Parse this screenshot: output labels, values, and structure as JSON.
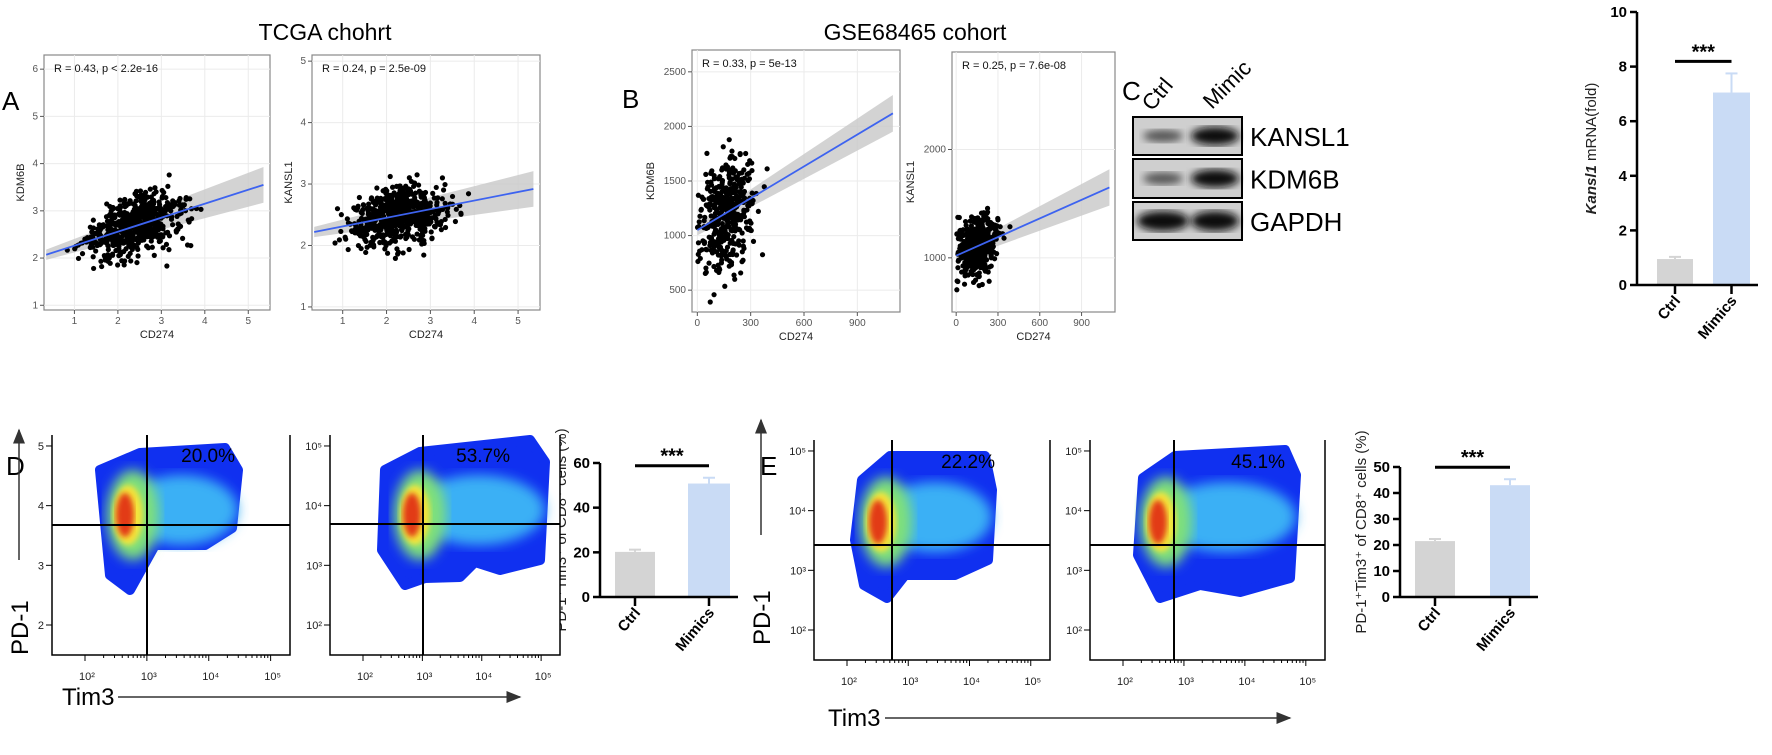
{
  "panel_labels": {
    "a": "A",
    "b": "B",
    "c": "C",
    "d": "D",
    "e": "E"
  },
  "titles": {
    "tcga": "TCGA chohrt",
    "gse": "GSE68465 cohort"
  },
  "blot": {
    "lanes": [
      "Ctrl",
      "Mimic"
    ],
    "bands": [
      "KANSL1",
      "KDM6B",
      "GAPDH"
    ]
  },
  "chart_data": [
    {
      "id": "A1",
      "type": "scatter",
      "xlabel": "CD274",
      "ylabel": "KDM6B",
      "annotation": "R = 0.43, p < 2.2e-16",
      "xlim": [
        0.3,
        5.5
      ],
      "ylim": [
        0.9,
        6.3
      ],
      "xticks": [
        "1",
        "2",
        "3",
        "4",
        "5"
      ],
      "xtick_values": [
        1,
        2,
        3,
        4,
        5
      ],
      "yticks": [
        "1",
        "2",
        "3",
        "4",
        "5",
        "6"
      ],
      "ytick_values": [
        1,
        2,
        3,
        4,
        5,
        6
      ],
      "fit": {
        "x": [
          0.35,
          5.35
        ],
        "y": [
          2.07,
          3.55
        ]
      },
      "n_points": 600,
      "x_center": 2.4,
      "x_spread": 0.9,
      "y_noise": 0.5,
      "grid": true
    },
    {
      "id": "A2",
      "type": "scatter",
      "xlabel": "CD274",
      "ylabel": "KANSL1",
      "annotation": "R = 0.24, p = 2.5e-09",
      "xlim": [
        0.3,
        5.5
      ],
      "ylim": [
        0.95,
        5.1
      ],
      "xticks": [
        "1",
        "2",
        "3",
        "4",
        "5"
      ],
      "xtick_values": [
        1,
        2,
        3,
        4,
        5
      ],
      "yticks": [
        "1",
        "2",
        "3",
        "4",
        "5"
      ],
      "ytick_values": [
        1,
        2,
        3,
        4,
        5
      ],
      "fit": {
        "x": [
          0.35,
          5.35
        ],
        "y": [
          2.22,
          2.92
        ]
      },
      "n_points": 600,
      "x_center": 2.3,
      "x_spread": 0.9,
      "y_noise": 0.4,
      "grid": true
    },
    {
      "id": "B1",
      "type": "scatter",
      "xlabel": "CD274",
      "ylabel": "KDM6B",
      "annotation": "R = 0.33, p = 5e-13",
      "xlim": [
        -30,
        1140
      ],
      "ylim": [
        300,
        2700
      ],
      "xticks": [
        "0",
        "300",
        "600",
        "900"
      ],
      "xtick_values": [
        0,
        300,
        600,
        900
      ],
      "yticks": [
        "500",
        "1000",
        "1500",
        "2000",
        "2500"
      ],
      "ytick_values": [
        500,
        1000,
        1500,
        2000,
        2500
      ],
      "fit": {
        "x": [
          0,
          1100
        ],
        "y": [
          1050,
          2120
        ]
      },
      "n_points": 450,
      "x_center": 160,
      "x_spread": 130,
      "y_noise": 420,
      "grid": true
    },
    {
      "id": "B2",
      "type": "scatter",
      "xlabel": "CD274",
      "ylabel": "KANSL1",
      "annotation": "R = 0.25, p = 7.6e-08",
      "xlim": [
        -30,
        1140
      ],
      "ylim": [
        500,
        2900
      ],
      "xticks": [
        "0",
        "300",
        "600",
        "900"
      ],
      "xtick_values": [
        0,
        300,
        600,
        900
      ],
      "yticks": [
        "1000",
        "2000"
      ],
      "ytick_values": [
        1000,
        2000
      ],
      "fit": {
        "x": [
          0,
          1100
        ],
        "y": [
          1020,
          1650
        ]
      },
      "n_points": 450,
      "x_center": 160,
      "x_spread": 130,
      "y_noise": 230,
      "grid": true
    },
    {
      "id": "C_bar",
      "type": "bar",
      "categories": [
        "Ctrl",
        "Mimics"
      ],
      "values": [
        0.95,
        7.05
      ],
      "errors": [
        0.08,
        0.7
      ],
      "ylabel_italic": "Kansl1",
      "ylabel": " mRNA(fold)",
      "ylim": [
        0,
        10
      ],
      "yticks": [
        "0",
        "2",
        "4",
        "6",
        "8",
        "10"
      ],
      "ytick_values": [
        0,
        2,
        4,
        6,
        8,
        10
      ],
      "significance": "***",
      "colors": [
        "#d4d4d4",
        "#c9dbf5"
      ]
    },
    {
      "id": "D_flow",
      "type": "heatmap",
      "xlabel": "Tim3",
      "ylabel": "PD-1",
      "plots": [
        {
          "quadrant_percent": "20.0%",
          "yticks": [
            "2",
            "3",
            "4",
            "5"
          ],
          "xticks": [
            "10²",
            "10³",
            "10⁴",
            "10⁵"
          ]
        },
        {
          "quadrant_percent": "53.7%",
          "yticks": [
            "10²",
            "10³",
            "10⁴",
            "10⁵"
          ],
          "xticks": [
            "10²",
            "10³",
            "10⁴",
            "10⁵"
          ]
        }
      ]
    },
    {
      "id": "D_bar",
      "type": "bar",
      "categories": [
        "Ctrl",
        "Mimics"
      ],
      "values": [
        20.2,
        50.8
      ],
      "errors": [
        1.0,
        2.6
      ],
      "ylabel": "PD-1⁺Tim3⁺ of CD8⁺ cells (%)",
      "ylim": [
        0,
        60
      ],
      "yticks": [
        "0",
        "20",
        "40",
        "60"
      ],
      "ytick_values": [
        0,
        20,
        40,
        60
      ],
      "significance": "***",
      "colors": [
        "#d4d4d4",
        "#c9dbf5"
      ]
    },
    {
      "id": "E_flow",
      "type": "heatmap",
      "xlabel": "Tim3",
      "ylabel": "PD-1",
      "plots": [
        {
          "quadrant_percent": "22.2%",
          "yticks": [
            "10²",
            "10³",
            "10⁴",
            "10⁵"
          ],
          "xticks": [
            "10²",
            "10³",
            "10⁴",
            "10⁵"
          ]
        },
        {
          "quadrant_percent": "45.1%",
          "yticks": [
            "10²",
            "10³",
            "10⁴",
            "10⁵"
          ],
          "xticks": [
            "10²",
            "10³",
            "10⁴",
            "10⁵"
          ]
        }
      ]
    },
    {
      "id": "E_bar",
      "type": "bar",
      "categories": [
        "Ctrl",
        "Mimics"
      ],
      "values": [
        21.5,
        43.0
      ],
      "errors": [
        0.8,
        2.3
      ],
      "ylabel": "PD-1⁺Tim3⁺ of CD8⁺ cells (%)",
      "ylim": [
        0,
        50
      ],
      "yticks": [
        "0",
        "10",
        "20",
        "30",
        "40",
        "50"
      ],
      "ytick_values": [
        0,
        10,
        20,
        30,
        40,
        50
      ],
      "significance": "***",
      "colors": [
        "#d4d4d4",
        "#c9dbf5"
      ]
    }
  ]
}
